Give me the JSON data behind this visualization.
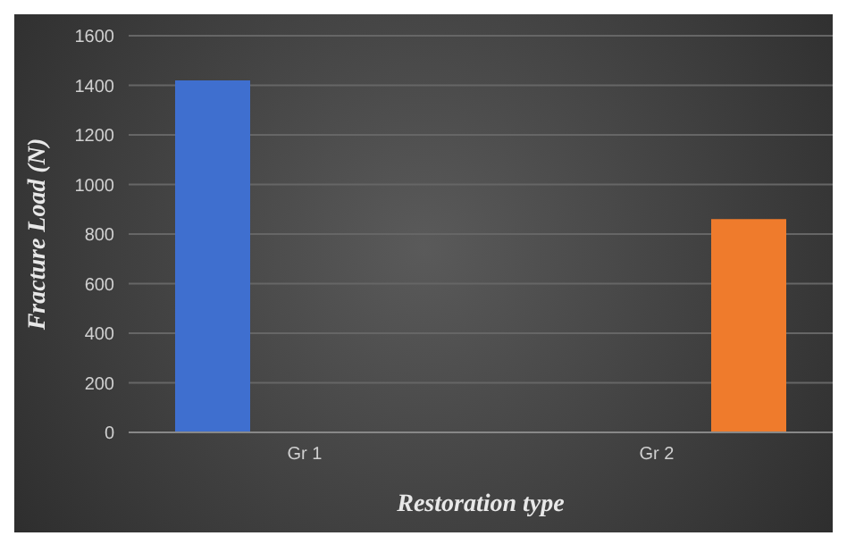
{
  "chart_data": {
    "type": "bar",
    "xlabel": "Restoration type",
    "ylabel": "Fracture Load  (N)",
    "categories": [
      "Gr 1",
      "Gr 2"
    ],
    "series": [
      {
        "color": "#3f6fcf",
        "values": [
          1420,
          null
        ]
      },
      {
        "color": "#ef7b2c",
        "values": [
          null,
          860
        ]
      }
    ],
    "ylim": [
      0,
      1600
    ],
    "yticks": [
      0,
      200,
      400,
      600,
      800,
      1000,
      1200,
      1400,
      1600
    ],
    "grid": "y",
    "legend": false
  }
}
